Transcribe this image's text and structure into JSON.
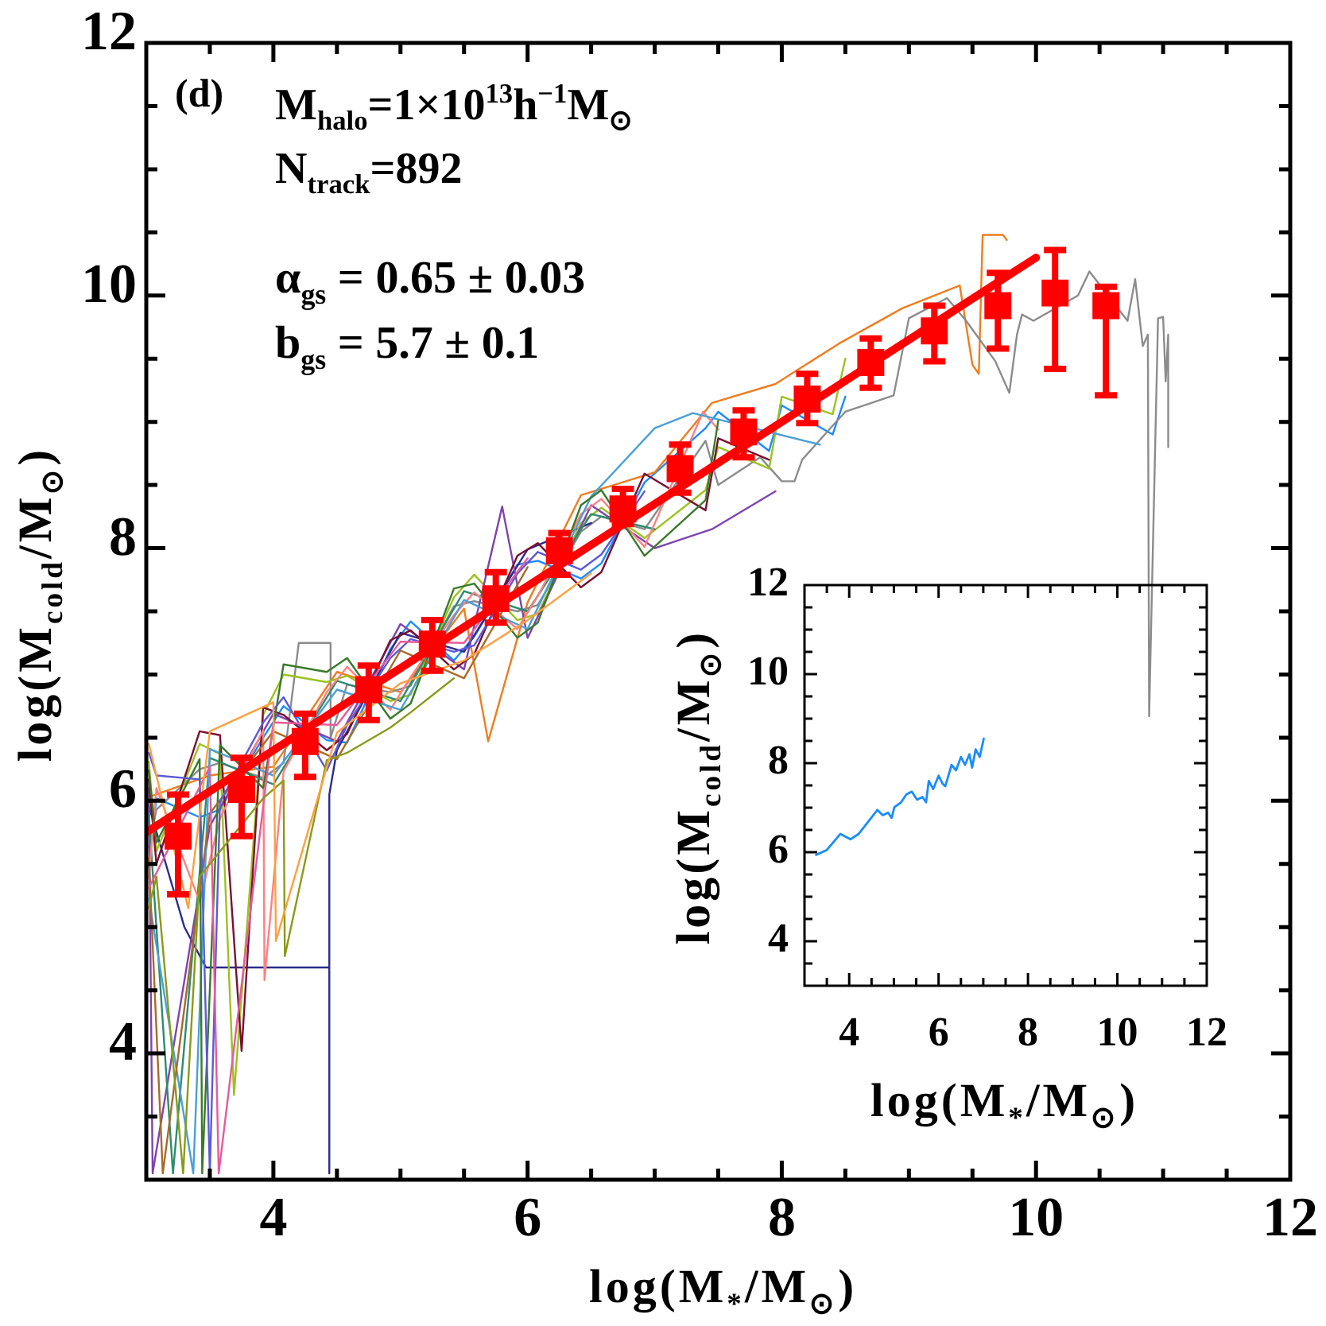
{
  "chart_data": [
    {
      "type": "line",
      "xlabel": "log(M$_{*}$/M$_{⊙}$)",
      "ylabel": "log(M$_{cold}$/M$_{⊙}$)",
      "annotations": [
        "(d)",
        "M$_{halo}$=1×10$^{13}$h$^{−1}$M$_{⊙}$",
        "N$_{track}$=892",
        "α$_{gs}$ = 0.65 ± 0.03",
        "b$_{gs}$ = 5.7 ± 0.1"
      ],
      "xlim": [
        3,
        12
      ],
      "ylim": [
        3,
        12
      ],
      "xticks": [
        {
          "value": 3.5,
          "label": null
        },
        4,
        {
          "value": 4.5,
          "label": null
        },
        {
          "value": 5,
          "label": null
        },
        {
          "value": 5.5,
          "label": null
        },
        6,
        {
          "value": 6.5,
          "label": null
        },
        {
          "value": 7,
          "label": null
        },
        {
          "value": 7.5,
          "label": null
        },
        8,
        {
          "value": 8.5,
          "label": null
        },
        {
          "value": 9,
          "label": null
        },
        {
          "value": 9.5,
          "label": null
        },
        10,
        {
          "value": 10.5,
          "label": null
        },
        {
          "value": 11,
          "label": null
        },
        {
          "value": 11.5,
          "label": null
        },
        12
      ],
      "yticks": [
        {
          "value": 3.5,
          "label": null
        },
        4,
        {
          "value": 4.5,
          "label": null
        },
        {
          "value": 5,
          "label": null
        },
        {
          "value": 5.5,
          "label": null
        },
        6,
        {
          "value": 6.5,
          "label": null
        },
        {
          "value": 7,
          "label": null
        },
        {
          "value": 7.5,
          "label": null
        },
        8,
        {
          "value": 8.5,
          "label": null
        },
        {
          "value": 9,
          "label": null
        },
        {
          "value": 9.5,
          "label": null
        },
        10,
        {
          "value": 10.5,
          "label": null
        },
        {
          "value": 11,
          "label": null
        },
        {
          "value": 11.5,
          "label": null
        },
        12
      ],
      "marker": "none",
      "series": [
        {
          "type": "line",
          "color": "#1a8cff",
          "x": [
            3.02,
            3.08,
            3.42,
            3.58,
            3.92,
            4.08,
            4.42,
            4.58,
            4.92,
            5.08,
            5.42,
            5.58,
            5.92,
            6.08,
            6.42,
            6.58,
            6.92,
            7.4,
            7.5,
            7.9,
            8.0,
            8.4,
            8.5
          ],
          "values": [
            5.47,
            6.02,
            5.87,
            5.93,
            6.5,
            6.75,
            6.48,
            6.46,
            7.2,
            7.42,
            7.11,
            7.3,
            7.87,
            7.9,
            7.76,
            7.88,
            8.52,
            8.95,
            9.08,
            8.77,
            9.13,
            8.9,
            9.2
          ]
        },
        {
          "type": "line",
          "color": "#f07d1f",
          "x": [
            3.02,
            3.5,
            4.0,
            4.5,
            5.0,
            5.5,
            5.69,
            6.0,
            6.42,
            7.0,
            7.45,
            7.95,
            8.45,
            8.95,
            9.4,
            9.5,
            9.55,
            9.58,
            9.74,
            9.77
          ],
          "values": [
            6.03,
            6.2,
            6.27,
            7.02,
            6.86,
            7.52,
            6.47,
            7.57,
            8.42,
            8.6,
            9.15,
            9.3,
            9.62,
            9.9,
            10.08,
            9.45,
            9.38,
            10.48,
            10.48,
            10.44
          ]
        },
        {
          "type": "line",
          "color": "#8c8c8c",
          "x": [
            3.02,
            3.08,
            3.42,
            3.58,
            3.92,
            4.08,
            4.2,
            4.45,
            4.45,
            4.58,
            4.92,
            5.08,
            5.42,
            5.58,
            5.92,
            6.08,
            6.42,
            6.58,
            6.92,
            7.4,
            7.5,
            7.83,
            8.0,
            8.1,
            8.16,
            8.4,
            8.5,
            8.88,
            9.0,
            9.3,
            9.45,
            9.68,
            9.79,
            9.85,
            9.89,
            9.98,
            10.33,
            10.42,
            10.72,
            10.78,
            10.84,
            10.88,
            10.89,
            10.96,
            11.0,
            11.02,
            11.04,
            11.04
          ],
          "values": [
            5.63,
            5.93,
            6.25,
            6.3,
            6.18,
            6.3,
            7.25,
            7.25,
            6.5,
            6.92,
            6.86,
            6.91,
            7.54,
            7.58,
            7.5,
            7.55,
            8.13,
            8.25,
            8.15,
            8.85,
            8.5,
            8.72,
            8.53,
            8.53,
            8.7,
            8.97,
            9.08,
            9.21,
            9.82,
            9.98,
            9.8,
            9.48,
            9.23,
            9.69,
            9.85,
            9.8,
            10.0,
            10.19,
            9.8,
            10.13,
            9.6,
            9.69,
            6.67,
            9.82,
            9.83,
            9.32,
            9.69,
            8.8
          ]
        },
        {
          "type": "line",
          "color": "#2b2b8c",
          "x": [
            3.02,
            3.3,
            3.47,
            4.44,
            4.44,
            4.44,
            4.5,
            5.0,
            5.5,
            6.0,
            6.5
          ],
          "values": [
            5.96,
            5.0,
            4.68,
            4.68,
            3.05,
            6.05,
            6.4,
            7.33,
            7.18,
            7.99,
            8.2
          ]
        },
        {
          "type": "line",
          "color": "#9dc21e",
          "x": [
            3.02,
            3.08,
            3.42,
            3.58,
            3.69,
            3.92,
            4.08,
            4.42,
            4.58,
            4.92,
            5.08,
            5.42,
            5.58,
            5.92,
            6.08,
            6.42,
            6.58,
            6.92,
            7.4,
            7.5,
            7.9,
            8.0,
            8.4,
            8.5
          ],
          "values": [
            6.31,
            5.6,
            6.45,
            6.37,
            3.67,
            6.68,
            7.0,
            6.94,
            6.99,
            6.79,
            6.84,
            7.61,
            7.79,
            7.43,
            7.48,
            8.2,
            8.32,
            8.08,
            8.46,
            8.8,
            8.63,
            9.2,
            9.06,
            9.5
          ]
        },
        {
          "type": "line",
          "color": "#7f44b0",
          "x": [
            3.02,
            3.05,
            3.5,
            4.0,
            4.5,
            5.0,
            5.5,
            5.8,
            6.0,
            6.5,
            7.0,
            7.45,
            7.95
          ],
          "values": [
            6.1,
            3.05,
            5.8,
            6.69,
            6.47,
            7.4,
            7.04,
            8.33,
            7.29,
            8.34,
            8.0,
            8.15,
            8.45
          ]
        },
        {
          "type": "line",
          "color": "#7a1030",
          "x": [
            3.02,
            3.08,
            3.42,
            3.58,
            3.75,
            3.92,
            4.08,
            4.42,
            4.58,
            4.92,
            5.08,
            5.42,
            5.58,
            5.92,
            6.08,
            6.42,
            6.58,
            6.92,
            7.4,
            7.5,
            7.9
          ],
          "values": [
            6.17,
            5.5,
            6.55,
            6.52,
            4.02,
            6.74,
            6.68,
            6.4,
            6.53,
            7.27,
            7.35,
            7.04,
            7.16,
            7.94,
            8.04,
            7.69,
            7.81,
            8.59,
            8.3,
            8.87,
            8.7
          ]
        },
        {
          "type": "line",
          "color": "#2e8b6f",
          "x": [
            3.02,
            3.21,
            3.5,
            4.0,
            4.5,
            5.0,
            5.5,
            6.0,
            6.5,
            7.0
          ],
          "values": [
            5.89,
            3.05,
            6.34,
            6.13,
            6.95,
            6.79,
            7.66,
            7.5,
            8.27,
            8.15
          ]
        },
        {
          "type": "line",
          "color": "#ff8080",
          "x": [
            3.02,
            3.08,
            3.42,
            3.58,
            3.92,
            3.93,
            4.08,
            4.42,
            4.58,
            4.92,
            5.08,
            5.42,
            5.58,
            5.92,
            6.08,
            6.42,
            6.58,
            6.92,
            7.38,
            7.5
          ],
          "values": [
            5.39,
            6.1,
            5.2,
            5.86,
            6.56,
            4.58,
            6.23,
            6.86,
            7.06,
            6.72,
            6.98,
            7.47,
            7.65,
            7.36,
            7.62,
            8.27,
            8.39,
            8.01,
            9.08,
            8.94
          ]
        },
        {
          "type": "line",
          "color": "#4aa0d8",
          "x": [
            3.02,
            3.37,
            3.5,
            4.0,
            4.5,
            5.0,
            5.5,
            6.0,
            6.5,
            7.0,
            7.3,
            8.3
          ],
          "values": [
            5.23,
            3.05,
            6.41,
            6.2,
            6.88,
            6.72,
            7.59,
            7.36,
            8.41,
            8.95,
            9.07,
            8.82
          ]
        },
        {
          "type": "line",
          "color": "#3a7a2a",
          "x": [
            3.02,
            3.08,
            3.42,
            3.44,
            3.58,
            3.92,
            4.08,
            4.42,
            4.58,
            4.92,
            5.08,
            5.42,
            5.58,
            5.92,
            6.08,
            6.42,
            6.58,
            6.92,
            7.4,
            7.5
          ],
          "values": [
            6.24,
            5.67,
            6.33,
            3.05,
            6.44,
            6.1,
            7.08,
            7.02,
            7.13,
            6.65,
            6.77,
            7.68,
            7.72,
            7.29,
            7.41,
            8.34,
            8.46,
            7.94,
            8.38,
            9.01
          ]
        },
        {
          "type": "line",
          "color": "#a86a2a",
          "x": [
            3.02,
            3.13,
            3.5,
            4.0,
            4.5,
            5.0,
            5.5,
            6.0
          ],
          "values": [
            5.55,
            3.05,
            5.9,
            6.55,
            6.33,
            7.19,
            6.97,
            7.85
          ]
        },
        {
          "type": "line",
          "color": "#5b5bd6",
          "x": [
            3.02,
            3.08,
            3.42,
            3.5,
            3.58,
            3.92,
            4.08,
            4.42,
            4.58,
            4.92,
            5.08,
            5.42,
            5.58,
            5.92,
            6.08,
            6.42,
            6.58,
            6.92
          ],
          "values": [
            6.38,
            6.2,
            6.17,
            3.05,
            5.99,
            6.62,
            6.82,
            6.24,
            6.6,
            7.13,
            7.28,
            7.18,
            7.23,
            7.8,
            7.97,
            7.83,
            7.95,
            8.45
          ]
        },
        {
          "type": "line",
          "color": "#e85a9a",
          "x": [
            3.02,
            3.5,
            3.57,
            4.0,
            4.5,
            5.0,
            5.5,
            6.0
          ],
          "values": [
            5.31,
            6.27,
            3.05,
            6.62,
            6.6,
            7.26,
            7.25,
            7.92
          ]
        },
        {
          "type": "line",
          "color": "#8a9a1a",
          "x": [
            3.02,
            3.08,
            3.29,
            3.42,
            3.58,
            3.92,
            4.08,
            4.09,
            4.42,
            4.58,
            4.92,
            5.08,
            5.42
          ],
          "values": [
            5.15,
            5.4,
            3.05,
            5.4,
            5.6,
            6.02,
            6.16,
            4.77,
            6.32,
            6.38,
            6.58,
            6.7,
            6.97
          ]
        },
        {
          "type": "line",
          "color": "#ffa040",
          "x": [
            3.02,
            3.33,
            3.5,
            4.0,
            4.02,
            4.5,
            5.0,
            5.5,
            6.0,
            6.5
          ],
          "values": [
            6.45,
            5.15,
            6.55,
            6.78,
            4.89,
            6.54,
            6.93,
            7.11,
            7.43,
            7.8
          ]
        },
        {
          "type": "line",
          "color": "#ff0000",
          "x": [
            3,
            10
          ],
          "values": [
            5.75,
            10.3
          ]
        },
        {
          "type": "scatter",
          "color": "#ff0000",
          "marker": "square",
          "x": [
            3.25,
            3.75,
            4.25,
            4.75,
            5.25,
            5.75,
            6.25,
            6.75,
            7.2,
            7.7,
            8.2,
            8.7,
            9.2,
            9.7,
            10.15,
            10.55
          ],
          "values": [
            5.72,
            6.09,
            6.47,
            6.88,
            7.24,
            7.6,
            7.98,
            8.31,
            8.63,
            8.92,
            9.18,
            9.47,
            9.72,
            9.92,
            10.02,
            9.92
          ],
          "errors": [
            [
              5.26,
              6.05
            ],
            [
              5.72,
              6.34
            ],
            [
              6.19,
              6.69
            ],
            [
              6.64,
              7.07
            ],
            [
              7.03,
              7.43
            ],
            [
              7.41,
              7.81
            ],
            [
              7.79,
              8.12
            ],
            [
              8.19,
              8.47
            ],
            [
              8.44,
              8.82
            ],
            [
              8.72,
              9.09
            ],
            [
              8.99,
              9.38
            ],
            [
              9.27,
              9.66
            ],
            [
              9.48,
              9.92
            ],
            [
              9.58,
              10.18
            ],
            [
              9.42,
              10.36
            ],
            [
              9.21,
              10.07
            ]
          ]
        }
      ]
    },
    {
      "type": "line",
      "xlabel": "log(M$_{*}$/M$_{⊙}$)",
      "ylabel": "log(M$_{cold}$/M$_{⊙}$)",
      "xlim": [
        3,
        12
      ],
      "ylim": [
        3,
        12
      ],
      "xticks": [
        {
          "value": 3.5,
          "label": null
        },
        4,
        {
          "value": 4.5,
          "label": null
        },
        {
          "value": 5,
          "label": null
        },
        {
          "value": 5.5,
          "label": null
        },
        6,
        {
          "value": 6.5,
          "label": null
        },
        {
          "value": 7,
          "label": null
        },
        {
          "value": 7.5,
          "label": null
        },
        8,
        {
          "value": 8.5,
          "label": null
        },
        {
          "value": 9,
          "label": null
        },
        {
          "value": 9.5,
          "label": null
        },
        10,
        {
          "value": 10.5,
          "label": null
        },
        {
          "value": 11,
          "label": null
        },
        {
          "value": 11.5,
          "label": null
        },
        12
      ],
      "yticks": [
        {
          "value": 3.5,
          "label": null
        },
        4,
        {
          "value": 4.5,
          "label": null
        },
        {
          "value": 5,
          "label": null
        },
        {
          "value": 5.5,
          "label": null
        },
        6,
        {
          "value": 6.5,
          "label": null
        },
        {
          "value": 7,
          "label": null
        },
        {
          "value": 7.5,
          "label": null
        },
        8,
        {
          "value": 8.5,
          "label": null
        },
        {
          "value": 9,
          "label": null
        },
        {
          "value": 9.5,
          "label": null
        },
        10,
        {
          "value": 10.5,
          "label": null
        },
        {
          "value": 11,
          "label": null
        },
        {
          "value": 11.5,
          "label": null
        },
        12
      ],
      "marker": "none",
      "series": [
        {
          "type": "line",
          "color": "#1a8cff",
          "x": [
            3.26,
            3.5,
            3.8,
            4.03,
            4.21,
            4.63,
            4.75,
            4.87,
            4.95,
            5.01,
            5.16,
            5.28,
            5.4,
            5.52,
            5.64,
            5.72,
            5.78,
            5.88,
            6.0,
            6.09,
            6.15,
            6.29,
            6.39,
            6.5,
            6.59,
            6.69,
            6.75,
            6.83,
            6.92,
            7.01
          ],
          "values": [
            5.94,
            6.05,
            6.41,
            6.29,
            6.41,
            6.95,
            6.83,
            6.89,
            6.77,
            7.01,
            7.12,
            7.3,
            7.36,
            7.18,
            7.24,
            7.12,
            7.6,
            7.42,
            7.72,
            7.54,
            7.48,
            7.96,
            7.84,
            8.14,
            7.96,
            8.2,
            7.9,
            8.31,
            8.14,
            8.55
          ]
        }
      ]
    }
  ]
}
